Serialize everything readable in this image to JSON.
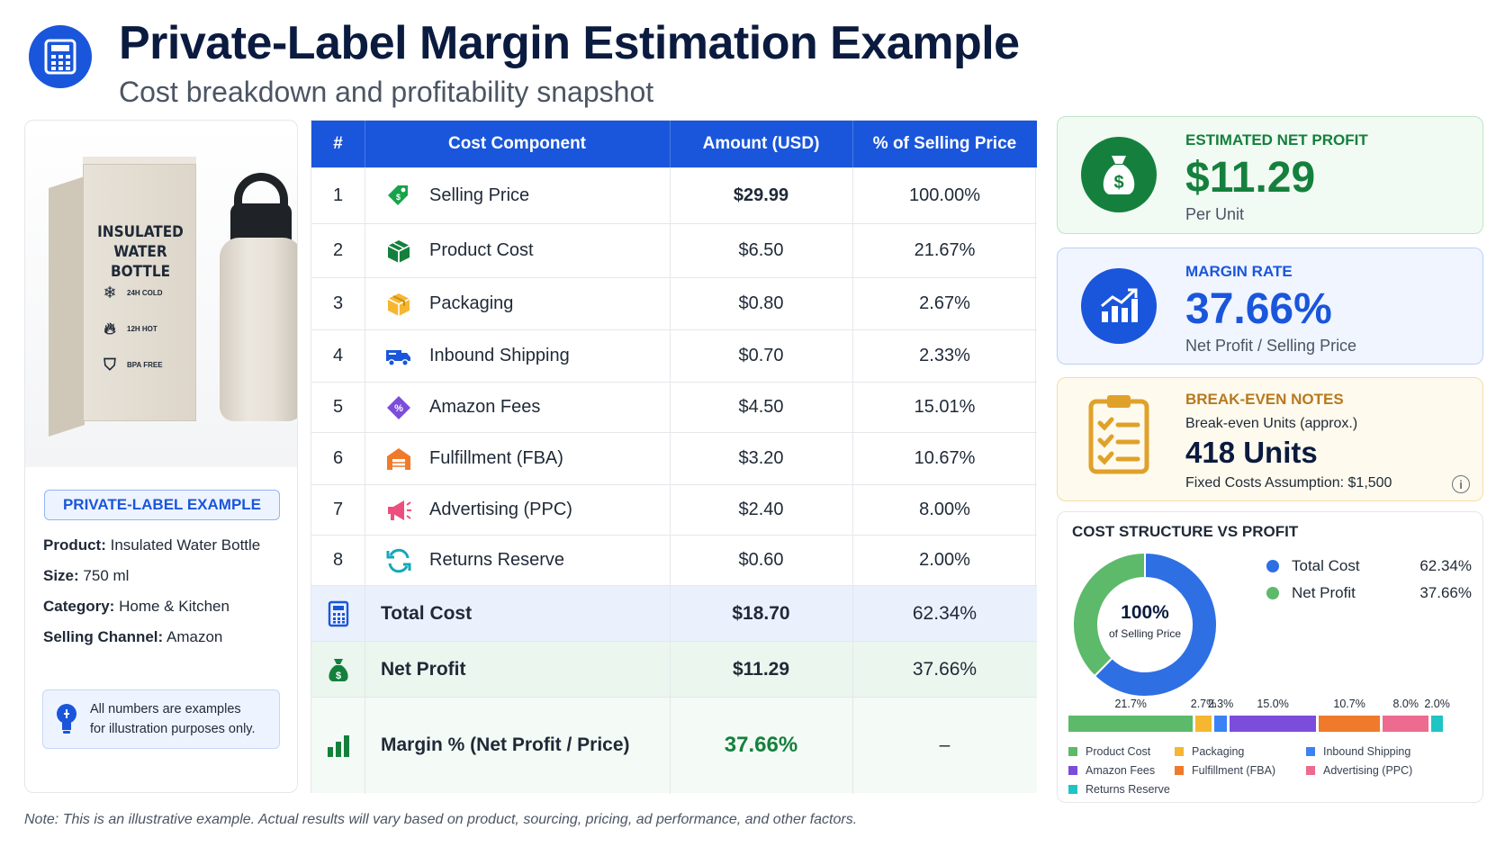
{
  "header": {
    "title": "Private-Label Margin Estimation Example",
    "subtitle": "Cost breakdown and profitability snapshot",
    "icon": "calculator-icon"
  },
  "product": {
    "box_label_line1": "INSULATED",
    "box_label_line2": "WATER BOTTLE",
    "box_features": [
      "24H COLD",
      "12H HOT",
      "BPA FREE"
    ],
    "badge": "PRIVATE-LABEL EXAMPLE",
    "specs": [
      {
        "label": "Product:",
        "value": "Insulated Water Bottle"
      },
      {
        "label": "Size:",
        "value": "750 ml"
      },
      {
        "label": "Category:",
        "value": "Home & Kitchen"
      },
      {
        "label": "Selling Channel:",
        "value": "Amazon"
      }
    ],
    "note_line1": "All numbers are examples",
    "note_line2": "for illustration purposes only."
  },
  "table": {
    "headers": [
      "#",
      "Cost Component",
      "Amount (USD)",
      "% of Selling Price"
    ],
    "rows": [
      {
        "num": "1",
        "component": "Selling Price",
        "amount": "$29.99",
        "pct": "100.00%",
        "icon": "price-tag-icon",
        "color": "#16a34a"
      },
      {
        "num": "2",
        "component": "Product Cost",
        "amount": "$6.50",
        "pct": "21.67%",
        "icon": "product-box-icon",
        "color": "#15803d"
      },
      {
        "num": "3",
        "component": "Packaging",
        "amount": "$0.80",
        "pct": "2.67%",
        "icon": "package-icon",
        "color": "#f5b731"
      },
      {
        "num": "4",
        "component": "Inbound Shipping",
        "amount": "$0.70",
        "pct": "2.33%",
        "icon": "truck-icon",
        "color": "#1a56db"
      },
      {
        "num": "5",
        "component": "Amazon Fees",
        "amount": "$4.50",
        "pct": "15.01%",
        "icon": "percent-tag-icon",
        "color": "#7c4ddb"
      },
      {
        "num": "6",
        "component": "Fulfillment (FBA)",
        "amount": "$3.20",
        "pct": "10.67%",
        "icon": "warehouse-icon",
        "color": "#f07a2b"
      },
      {
        "num": "7",
        "component": "Advertising (PPC)",
        "amount": "$2.40",
        "pct": "8.00%",
        "icon": "megaphone-icon",
        "color": "#ec4f7e"
      },
      {
        "num": "8",
        "component": "Returns Reserve",
        "amount": "$0.60",
        "pct": "2.00%",
        "icon": "refresh-icon",
        "color": "#14a8b8"
      }
    ],
    "total": {
      "label": "Total Cost",
      "amount": "$18.70",
      "pct": "62.34%",
      "icon": "calculator-icon"
    },
    "profit": {
      "label": "Net Profit",
      "amount": "$11.29",
      "pct": "37.66%",
      "icon": "money-bag-icon"
    },
    "margin": {
      "label": "Margin % (Net Profit / Price)",
      "amount": "37.66%",
      "pct": "–",
      "icon": "bar-chart-icon"
    }
  },
  "kpis": {
    "profit": {
      "label": "ESTIMATED NET PROFIT",
      "value": "$11.29",
      "sub": "Per Unit",
      "icon": "money-bag-icon",
      "color": "#15803d"
    },
    "margin": {
      "label": "MARGIN RATE",
      "value": "37.66%",
      "sub": "Net Profit / Selling Price",
      "icon": "growth-chart-icon",
      "color": "#1a56db"
    },
    "breakeven": {
      "label": "BREAK-EVEN NOTES",
      "line1": "Break-even Units (approx.)",
      "value": "418 Units",
      "line2": "Fixed Costs Assumption: $1,500",
      "icon": "checklist-icon",
      "info_icon": "info-icon",
      "color": "#b7791f"
    }
  },
  "chart_data": {
    "type": "pie",
    "title": "COST STRUCTURE VS PROFIT",
    "center_value": "100%",
    "center_label": "of Selling Price",
    "slices": [
      {
        "name": "Total Cost",
        "value": 62.34,
        "label": "62.34%",
        "color": "#2f6fe4"
      },
      {
        "name": "Net Profit",
        "value": 37.66,
        "label": "37.66%",
        "color": "#5cba6a"
      }
    ],
    "breakdown": {
      "type": "bar",
      "categories": [
        "Product Cost",
        "Packaging",
        "Inbound Shipping",
        "Amazon Fees",
        "Fulfillment (FBA)",
        "Advertising (PPC)",
        "Returns Reserve"
      ],
      "values": [
        21.7,
        2.7,
        2.3,
        15.0,
        10.7,
        8.0,
        2.0
      ],
      "labels": [
        "21.7%",
        "2.7%",
        "2.3%",
        "15.0%",
        "10.7%",
        "8.0%",
        "2.0%"
      ],
      "colors": [
        "#5cba6a",
        "#f5b731",
        "#3b82f6",
        "#7c4ddb",
        "#f07a2b",
        "#ec6b8f",
        "#1fc4c4"
      ]
    }
  },
  "footnote": "Note: This is an illustrative example. Actual results will vary based on product, sourcing, pricing, ad performance, and other factors."
}
